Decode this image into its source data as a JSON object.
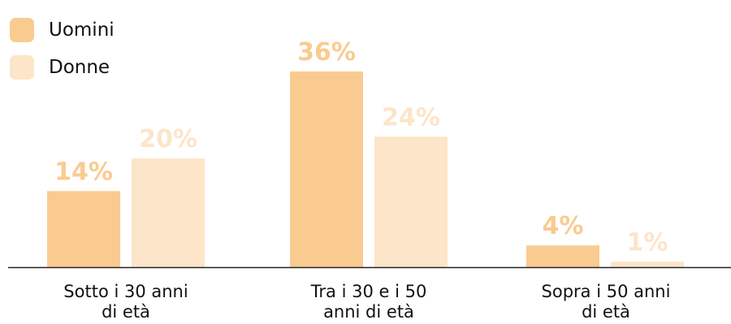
{
  "colors": {
    "uomini": "#f9cb91",
    "donne": "#fce5c9",
    "axis": "#222222"
  },
  "chart_data": {
    "type": "bar",
    "categories": [
      [
        "Sotto i 30 anni",
        "di età"
      ],
      [
        "Tra i 30 e i 50",
        "anni di età"
      ],
      [
        "Sopra i 50 anni",
        "di età"
      ]
    ],
    "series": [
      {
        "name": "Uomini",
        "values": [
          14,
          36,
          4
        ],
        "labels": [
          "14%",
          "36%",
          "4%"
        ]
      },
      {
        "name": "Donne",
        "values": [
          20,
          24,
          1
        ],
        "labels": [
          "20%",
          "24%",
          "1%"
        ]
      }
    ],
    "ylim": [
      0,
      36
    ],
    "legend_position": "top-left",
    "grid": false
  }
}
